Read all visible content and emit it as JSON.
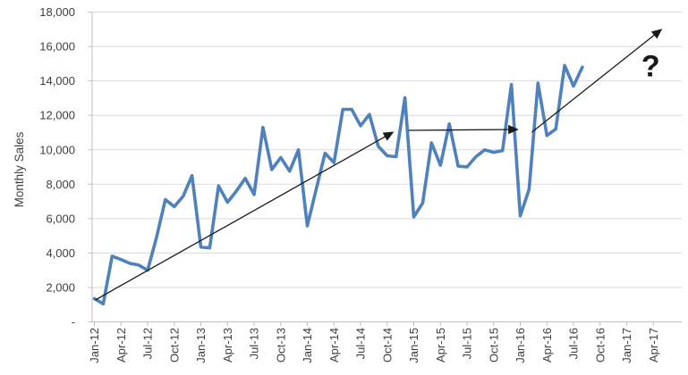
{
  "colors": {
    "series_line": "#4F81BD",
    "arrow": "#1a1a1a",
    "gridline": "#D9D9D9",
    "axis_line": "#BFBFBF",
    "text": "#404040",
    "background": "#ffffff"
  },
  "chart_data": {
    "type": "line",
    "title": "",
    "xlabel": "",
    "ylabel": "Monthly Sales",
    "ylim": [
      0,
      18000
    ],
    "grid": true,
    "legend": "none",
    "y_tick_labels": [
      "-",
      "2,000",
      "4,000",
      "6,000",
      "8,000",
      "10,000",
      "12,000",
      "14,000",
      "16,000",
      "18,000"
    ],
    "y_tick_values": [
      0,
      2000,
      4000,
      6000,
      8000,
      10000,
      12000,
      14000,
      16000,
      18000
    ],
    "x_tick_labels": [
      "Jan-12",
      "Apr-12",
      "Jul-12",
      "Oct-12",
      "Jan-13",
      "Apr-13",
      "Jul-13",
      "Oct-13",
      "Jan-14",
      "Apr-14",
      "Jul-14",
      "Oct-14",
      "Jan-15",
      "Apr-15",
      "Jul-15",
      "Oct-15",
      "Jan-16",
      "Apr-16",
      "Jul-16",
      "Oct-16",
      "Jan-17",
      "Apr-17"
    ],
    "x": [
      "Jan-12",
      "Feb-12",
      "Mar-12",
      "Apr-12",
      "May-12",
      "Jun-12",
      "Jul-12",
      "Aug-12",
      "Sep-12",
      "Oct-12",
      "Nov-12",
      "Dec-12",
      "Jan-13",
      "Feb-13",
      "Mar-13",
      "Apr-13",
      "May-13",
      "Jun-13",
      "Jul-13",
      "Aug-13",
      "Sep-13",
      "Oct-13",
      "Nov-13",
      "Dec-13",
      "Jan-14",
      "Feb-14",
      "Mar-14",
      "Apr-14",
      "May-14",
      "Jun-14",
      "Jul-14",
      "Aug-14",
      "Sep-14",
      "Oct-14",
      "Nov-14",
      "Dec-14",
      "Jan-15",
      "Feb-15",
      "Mar-15",
      "Apr-15",
      "May-15",
      "Jun-15",
      "Jul-15",
      "Aug-15",
      "Sep-15",
      "Oct-15",
      "Nov-15",
      "Dec-15",
      "Jan-16",
      "Feb-16",
      "Mar-16",
      "Apr-16",
      "May-16",
      "Jun-16",
      "Jul-16",
      "Aug-16"
    ],
    "series": [
      {
        "name": "Monthly Sales",
        "values": [
          1350,
          1050,
          3820,
          3620,
          3400,
          3300,
          3000,
          4900,
          7100,
          6700,
          7300,
          8500,
          4350,
          4300,
          7900,
          6950,
          7600,
          8340,
          7400,
          11300,
          8850,
          9550,
          8760,
          10000,
          5580,
          7700,
          9800,
          9250,
          12350,
          12350,
          11400,
          12050,
          10200,
          9650,
          9600,
          13020,
          6100,
          6900,
          10400,
          9100,
          11500,
          9050,
          9000,
          9600,
          10000,
          9850,
          9950,
          13790,
          6160,
          7710,
          13880,
          10830,
          11200,
          14900,
          13700,
          14800
        ]
      }
    ],
    "annotations": {
      "trend_arrows": [
        {
          "from_month": 0.1,
          "from_value": 1270,
          "to_month": 33.65,
          "to_value": 11020
        },
        {
          "from_month": 35.4,
          "from_value": 11130,
          "to_month": 47.7,
          "to_value": 11180
        },
        {
          "from_month": 49.3,
          "from_value": 11020,
          "to_month": 63.9,
          "to_value": 16990
        }
      ],
      "question_mark": {
        "label": "?",
        "month": 62.7,
        "value": 14900
      }
    }
  }
}
